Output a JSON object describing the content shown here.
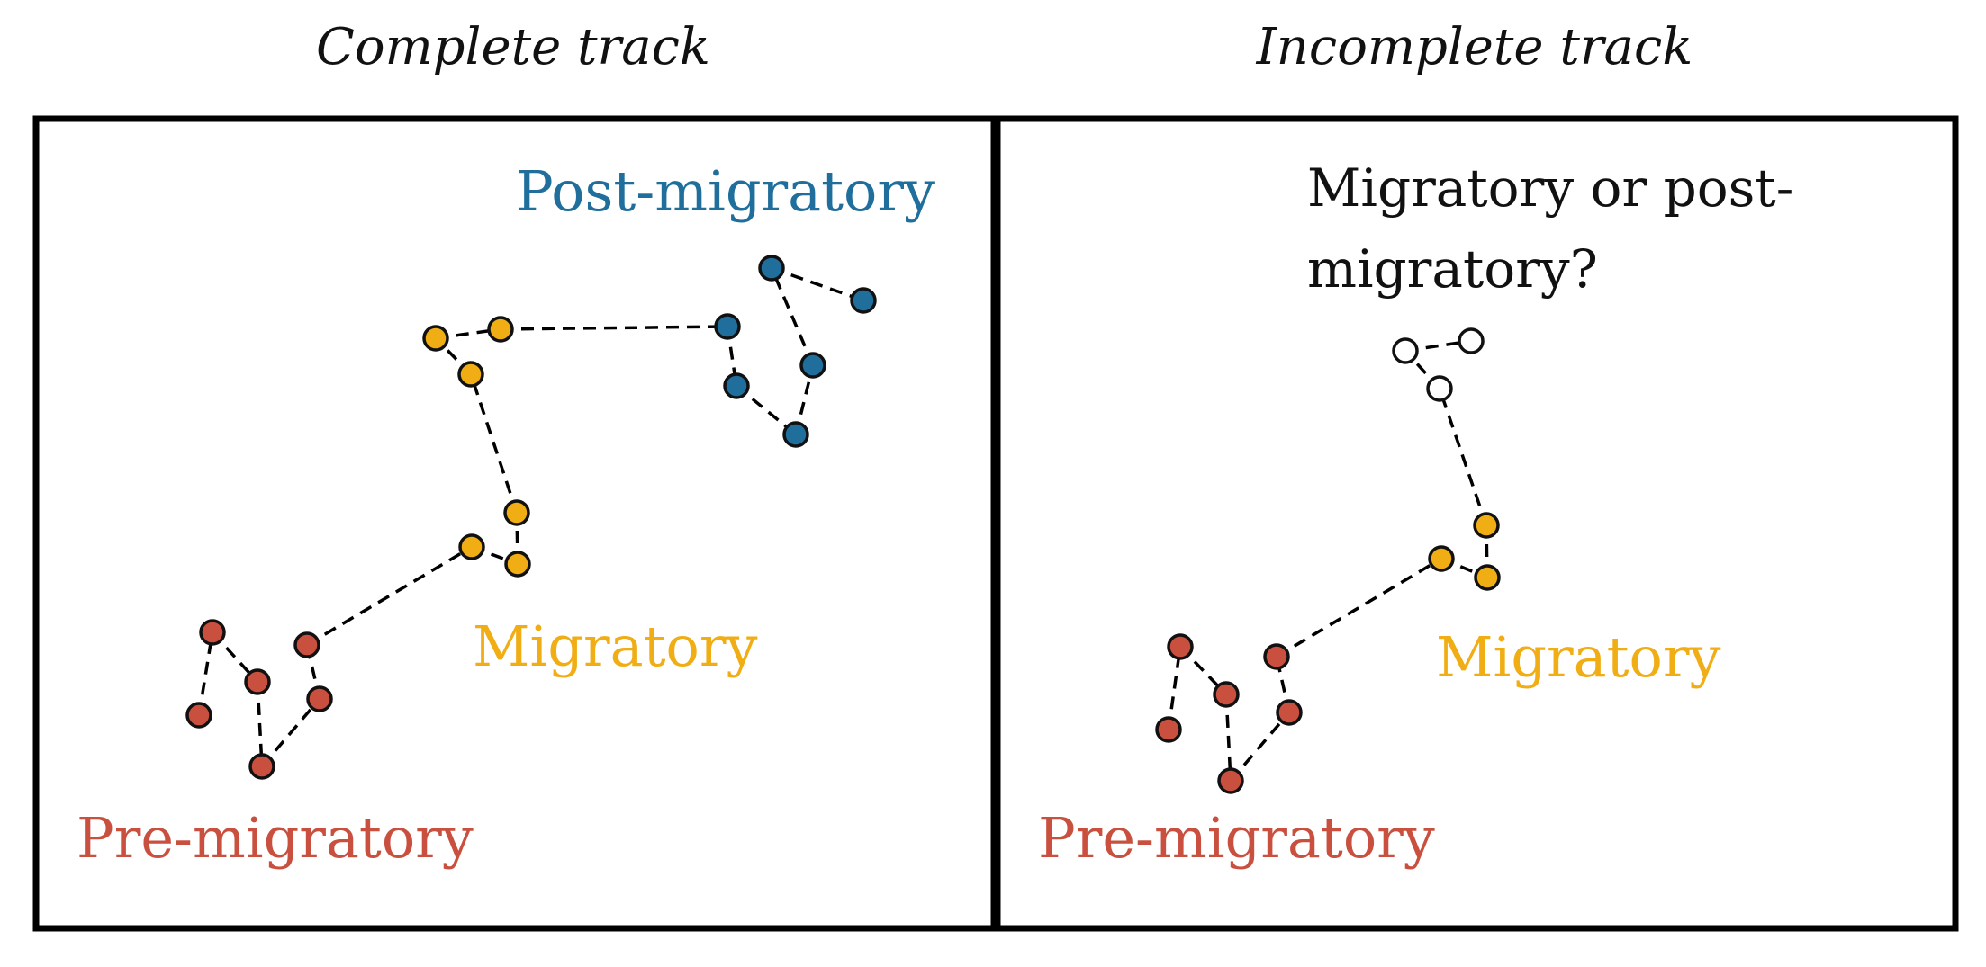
{
  "titles": {
    "left": "Complete track",
    "right": "Incomplete track"
  },
  "colors": {
    "pre": "#c9503f",
    "mig": "#f0ad14",
    "post": "#1f6e9c",
    "unknown": "#ffffff",
    "stroke": "#111111"
  },
  "left_panel": {
    "labels": {
      "pre": "Pre-migratory",
      "mig": "Migratory",
      "post": "Post-migratory"
    },
    "states": [
      "pre",
      "pre",
      "pre",
      "pre",
      "pre",
      "pre",
      "mig",
      "mig",
      "mig",
      "mig",
      "mig",
      "mig",
      "post",
      "post",
      "post",
      "post",
      "post",
      "post"
    ]
  },
  "right_panel": {
    "labels": {
      "pre": "Pre-migratory",
      "mig": "Migratory"
    },
    "question_lines": [
      "Migratory or post-",
      "migratory?"
    ],
    "states": [
      "pre",
      "pre",
      "pre",
      "pre",
      "pre",
      "pre",
      "mig",
      "mig",
      "mig",
      "unknown",
      "unknown",
      "unknown"
    ]
  }
}
